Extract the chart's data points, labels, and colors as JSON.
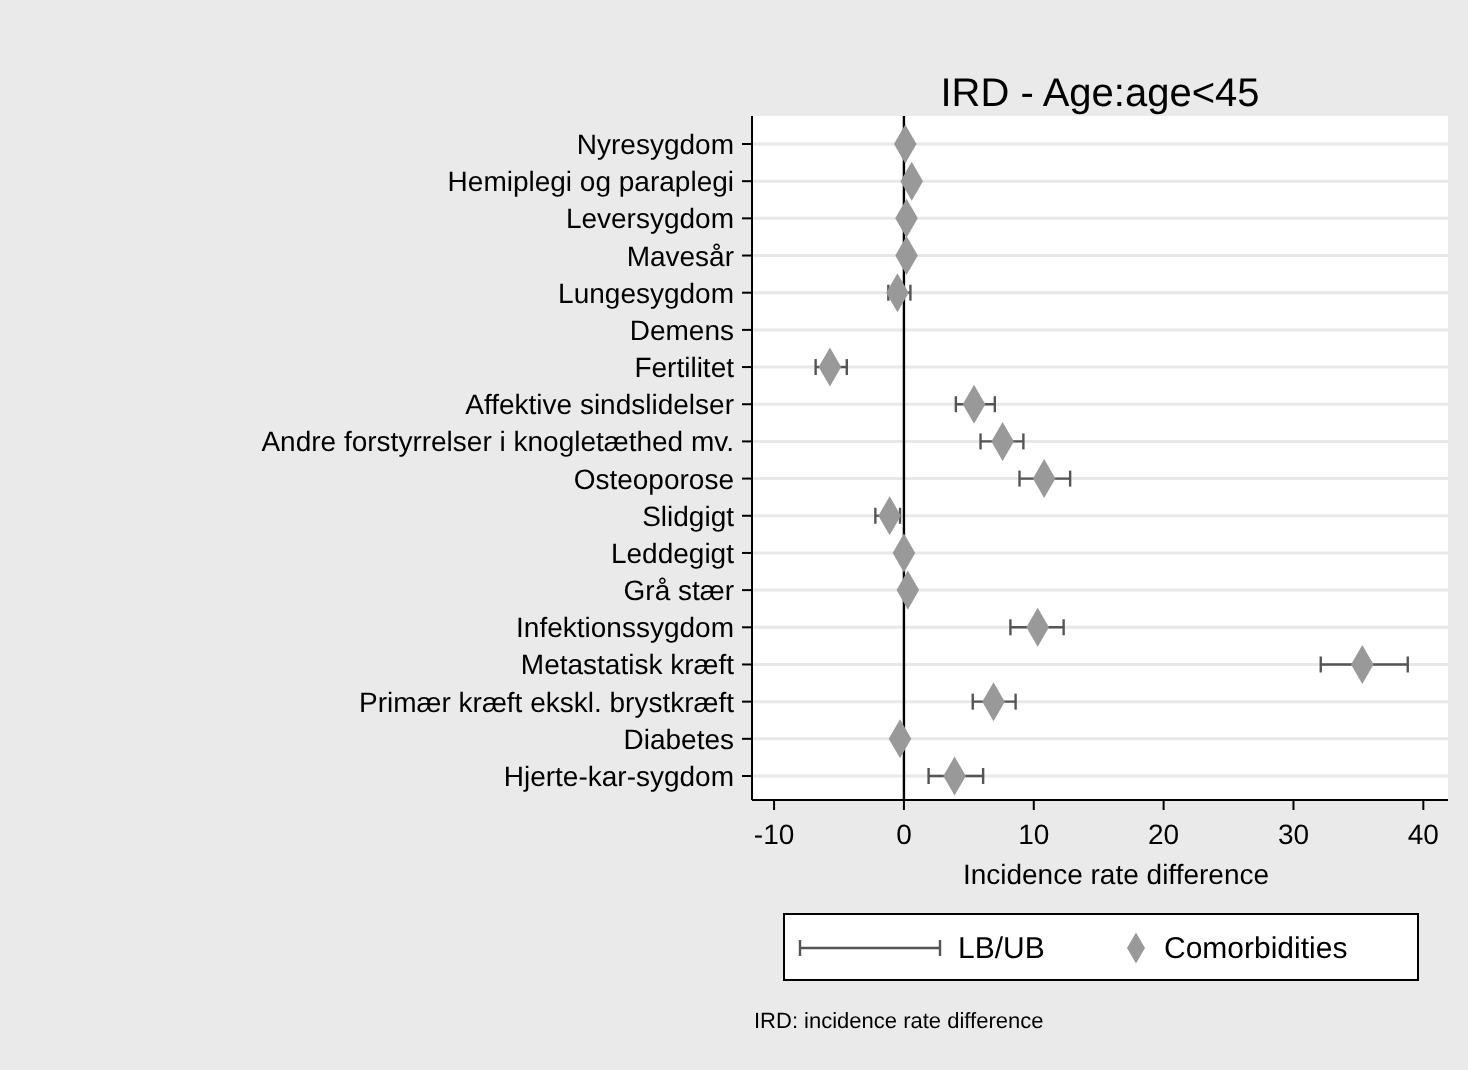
{
  "chart_data": {
    "type": "scatter",
    "orientation": "horizontal",
    "title": "IRD - Age:age<45",
    "xlabel": "Incidence rate difference",
    "categories": [
      "Nyresygdom",
      "Hemiplegi og paraplegi",
      "Leversygdom",
      "Mavesår",
      "Lungesygdom",
      "Demens",
      "Fertilitet",
      "Affektive sindslidelser",
      "Andre forstyrrelser i knogletæthed mv.",
      "Osteoporose",
      "Slidgigt",
      "Leddegigt",
      "Grå stær",
      "Infektionssygdom",
      "Metastatisk kræft",
      "Primær kræft ekskl. brystkræft",
      "Diabetes",
      "Hjerte-kar-sygdom"
    ],
    "series": [
      {
        "name": "Comorbidities",
        "color": "#999999",
        "values": [
          0.1,
          0.6,
          0.2,
          0.2,
          -0.5,
          null,
          -5.7,
          5.4,
          7.6,
          10.8,
          -1.1,
          0.0,
          0.3,
          10.3,
          35.3,
          6.9,
          -0.3,
          3.9
        ],
        "errors": [
          null,
          null,
          null,
          null,
          [
            -1.2,
            0.5
          ],
          null,
          [
            -6.8,
            -4.4
          ],
          [
            4.0,
            7.0
          ],
          [
            5.9,
            9.2
          ],
          [
            8.9,
            12.8
          ],
          [
            -2.2,
            -0.3
          ],
          null,
          null,
          [
            8.2,
            12.3
          ],
          [
            32.1,
            38.8
          ],
          [
            5.3,
            8.6
          ],
          null,
          [
            1.9,
            6.1
          ]
        ]
      }
    ],
    "xlim": [
      -11.7,
      41.9
    ],
    "xticks": [
      -10,
      0,
      10,
      20,
      30,
      40
    ],
    "grid": "y",
    "marker": "diamond",
    "legend": "bottom",
    "ref_lines": [
      {
        "axis": "x",
        "value": 0,
        "color": "#000000"
      }
    ],
    "annotations": [
      "LB/UB",
      "IRD: incidence rate difference"
    ]
  }
}
